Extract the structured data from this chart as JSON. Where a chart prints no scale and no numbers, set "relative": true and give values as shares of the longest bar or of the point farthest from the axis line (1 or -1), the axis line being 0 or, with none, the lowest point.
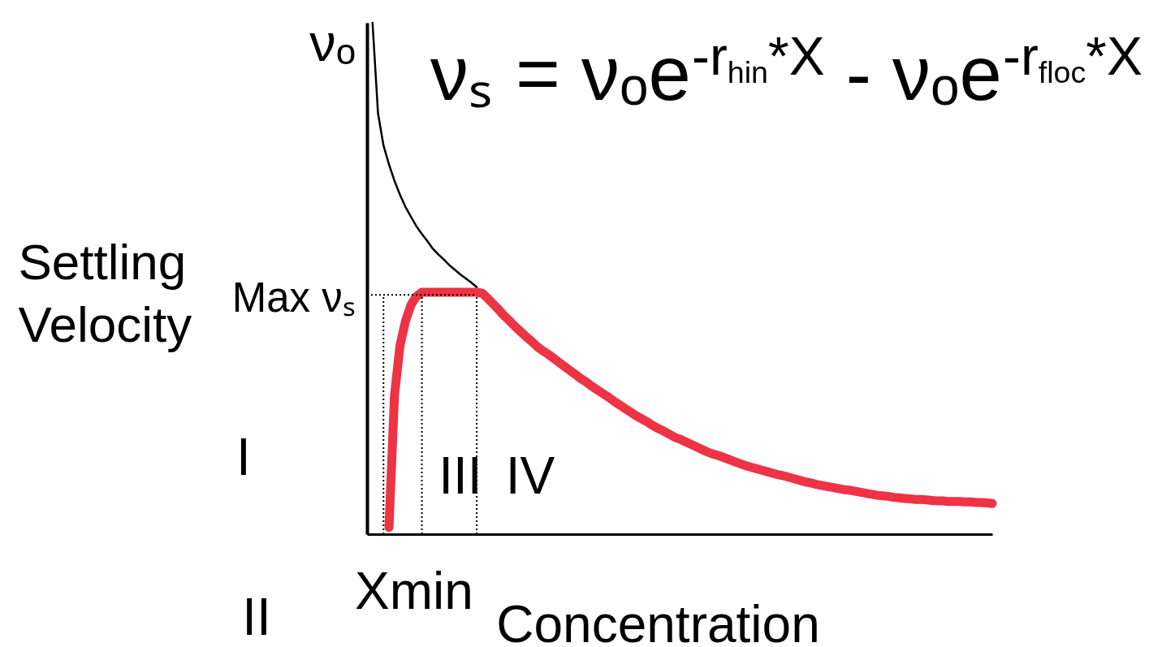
{
  "chart_data": {
    "type": "line",
    "relative": true,
    "xlabel": "Concentration",
    "ylabel": "Settling Velocity",
    "categories": [
      null,
      null,
      null,
      null,
      null,
      null,
      null,
      null,
      null,
      null,
      null,
      null,
      null,
      null,
      null,
      null,
      null,
      null,
      null,
      null,
      null,
      null,
      null,
      null,
      null,
      null,
      null,
      null,
      null,
      null,
      null,
      null,
      null,
      null,
      null,
      null,
      null,
      null,
      null,
      null,
      null,
      null,
      null,
      null,
      null,
      null,
      null,
      null,
      null,
      null,
      null,
      null,
      null,
      null,
      null,
      null,
      null,
      null,
      null,
      null,
      null,
      null,
      null,
      null,
      null,
      null,
      null,
      null,
      null,
      null,
      null,
      null,
      null,
      null,
      null,
      null,
      null,
      null,
      null,
      null,
      null,
      null,
      null,
      null,
      null,
      null,
      null,
      null,
      null,
      null,
      null,
      null,
      null,
      null,
      null,
      null,
      null,
      null,
      null,
      null,
      null,
      null,
      null,
      null,
      null,
      null,
      null,
      null,
      null,
      null,
      null,
      null,
      null,
      null,
      null
    ],
    "series": [
      {
        "color": "#000000",
        "values": [
          null,
          1.0,
          0.823,
          0.76,
          0.723,
          0.691,
          0.664,
          0.64,
          0.621,
          0.602,
          0.587,
          0.573,
          0.558,
          0.547,
          0.537,
          0.526,
          0.517,
          0.508,
          0.5,
          0.492,
          0.483,
          null,
          null,
          null,
          null,
          null,
          null,
          null,
          null,
          null,
          null,
          null,
          null,
          null,
          null,
          null,
          null,
          null,
          null,
          null,
          null,
          null,
          null,
          null,
          null,
          null,
          null,
          null,
          null,
          null,
          null,
          null,
          null,
          null,
          null,
          null,
          null,
          null,
          null,
          null,
          null,
          null,
          null,
          null,
          null,
          null,
          null,
          null,
          null,
          null,
          null,
          null,
          null,
          null,
          null,
          null,
          null,
          null,
          null,
          null,
          null,
          null,
          null,
          null,
          null,
          null,
          null,
          null,
          null,
          null,
          null,
          null,
          null,
          null,
          null,
          null,
          null,
          null,
          null,
          null,
          null,
          null,
          null,
          null,
          null,
          null,
          null,
          null,
          null,
          null,
          null,
          null,
          null,
          null,
          null
        ]
      },
      {
        "color": "#ee3344",
        "values": [
          null,
          null,
          null,
          null,
          0.013,
          0.271,
          0.368,
          0.416,
          0.448,
          0.465,
          0.473,
          0.473,
          0.473,
          0.473,
          0.473,
          0.473,
          0.473,
          0.473,
          0.473,
          0.473,
          0.473,
          0.471,
          0.461,
          0.45,
          0.439,
          0.427,
          0.417,
          0.406,
          0.396,
          0.386,
          0.377,
          0.367,
          0.359,
          0.352,
          0.344,
          0.336,
          0.328,
          0.32,
          0.312,
          0.304,
          0.297,
          0.289,
          0.282,
          0.275,
          0.268,
          0.26,
          0.253,
          0.246,
          0.239,
          0.232,
          0.226,
          0.22,
          0.213,
          0.207,
          0.202,
          0.196,
          0.19,
          0.186,
          0.181,
          0.176,
          0.171,
          0.166,
          0.161,
          0.157,
          0.154,
          0.15,
          0.146,
          0.142,
          0.138,
          0.134,
          0.131,
          0.128,
          0.125,
          0.122,
          0.119,
          0.116,
          0.114,
          0.111,
          0.108,
          0.105,
          0.102,
          0.1,
          0.097,
          0.095,
          0.093,
          0.091,
          0.089,
          0.087,
          0.086,
          0.084,
          0.082,
          0.08,
          0.078,
          0.076,
          0.075,
          0.074,
          0.072,
          0.071,
          0.07,
          0.069,
          0.068,
          0.068,
          0.067,
          0.066,
          0.065,
          0.065,
          0.064,
          0.064,
          0.064,
          0.063,
          0.063,
          0.062,
          0.062,
          0.061,
          0.06
        ]
      }
    ],
    "ref_lines": [
      {
        "axis": "y",
        "value": 0.468,
        "label": "Max νₛ",
        "line_style": "dotted",
        "color": "#000000"
      }
    ],
    "annotations": [
      "νₒ",
      "νₛ = νₒe$^{-r}$$_{hin}$$^{*X}$ - νₒe$^{-r}$$_{floc}$$^{*X}$",
      "I",
      "II",
      "III",
      "IV",
      "Xmin"
    ]
  }
}
